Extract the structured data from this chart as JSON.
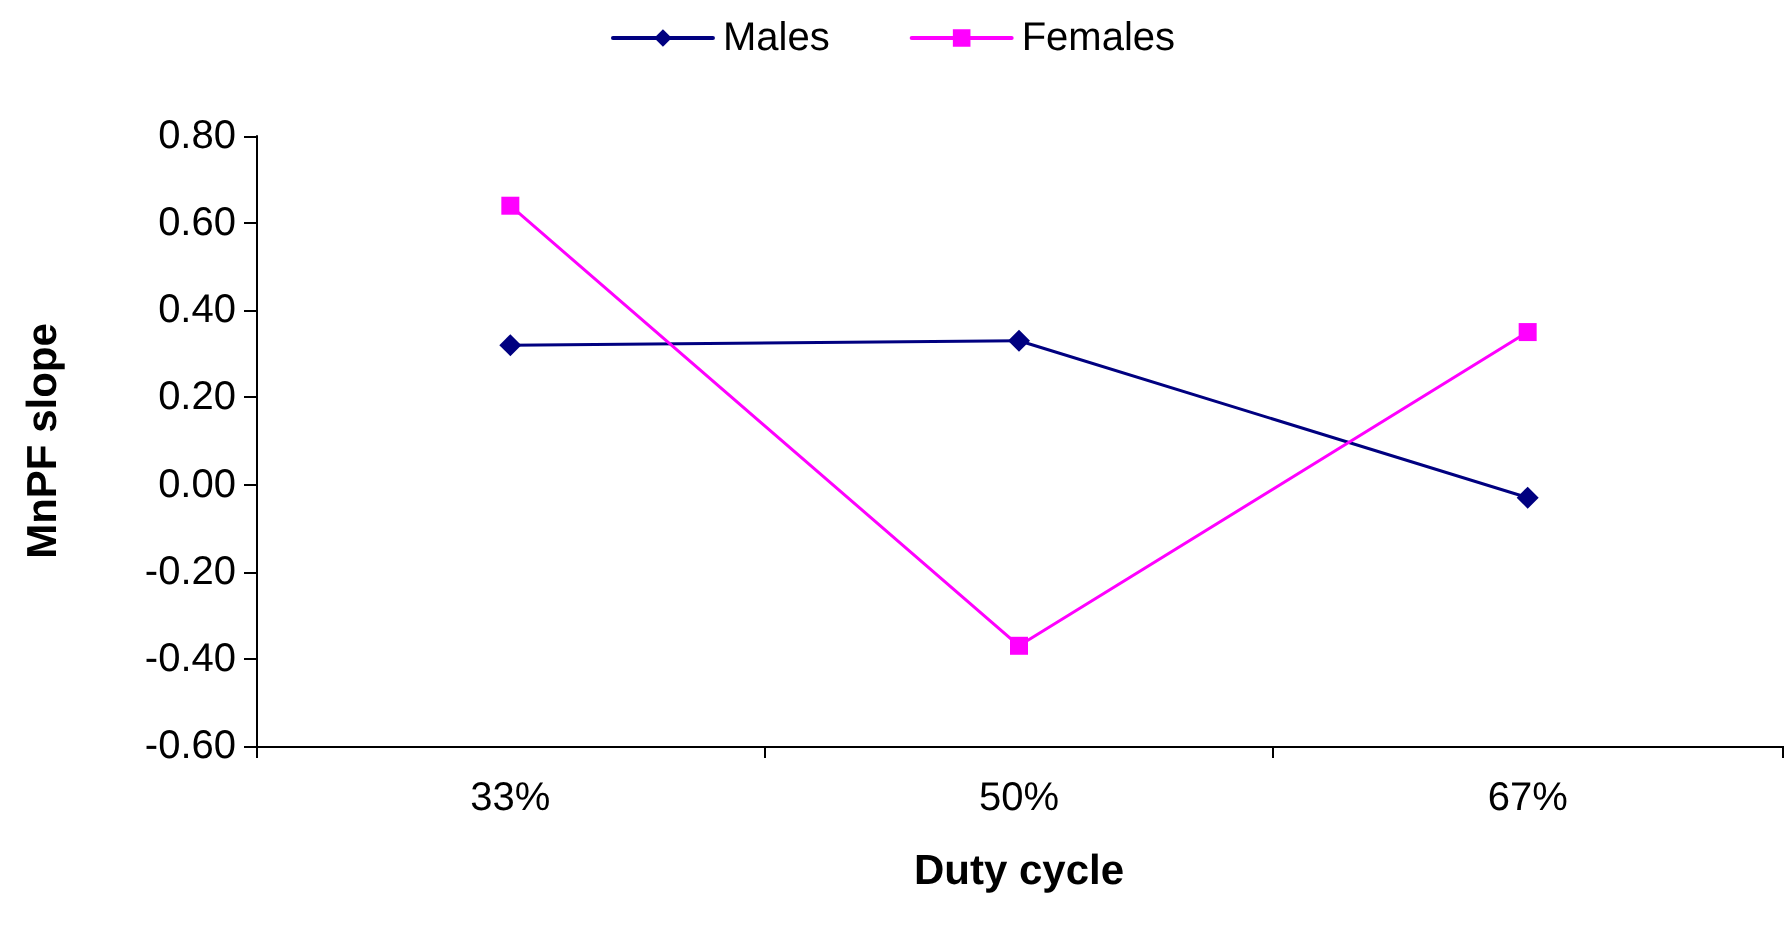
{
  "chart_data": {
    "type": "line",
    "xlabel": "Duty cycle",
    "ylabel": "MnPF slope",
    "categories": [
      "33%",
      "50%",
      "67%"
    ],
    "series": [
      {
        "name": "Males",
        "color": "#000080",
        "marker": "diamond",
        "values": [
          0.32,
          0.33,
          -0.03
        ]
      },
      {
        "name": "Females",
        "color": "#ff00ff",
        "marker": "square",
        "values": [
          0.64,
          -0.37,
          0.35
        ]
      }
    ],
    "ylim": [
      -0.6,
      0.8
    ],
    "yticks": [
      {
        "value": -0.6,
        "label": "-0.60"
      },
      {
        "value": -0.4,
        "label": "-0.40"
      },
      {
        "value": -0.2,
        "label": "-0.20"
      },
      {
        "value": 0,
        "label": "0.00"
      },
      {
        "value": 0.2,
        "label": "0.20"
      },
      {
        "value": 0.4,
        "label": "0.40"
      },
      {
        "value": 0.6,
        "label": "0.60"
      },
      {
        "value": 0.8,
        "label": "0.80"
      }
    ],
    "legend": "top"
  }
}
